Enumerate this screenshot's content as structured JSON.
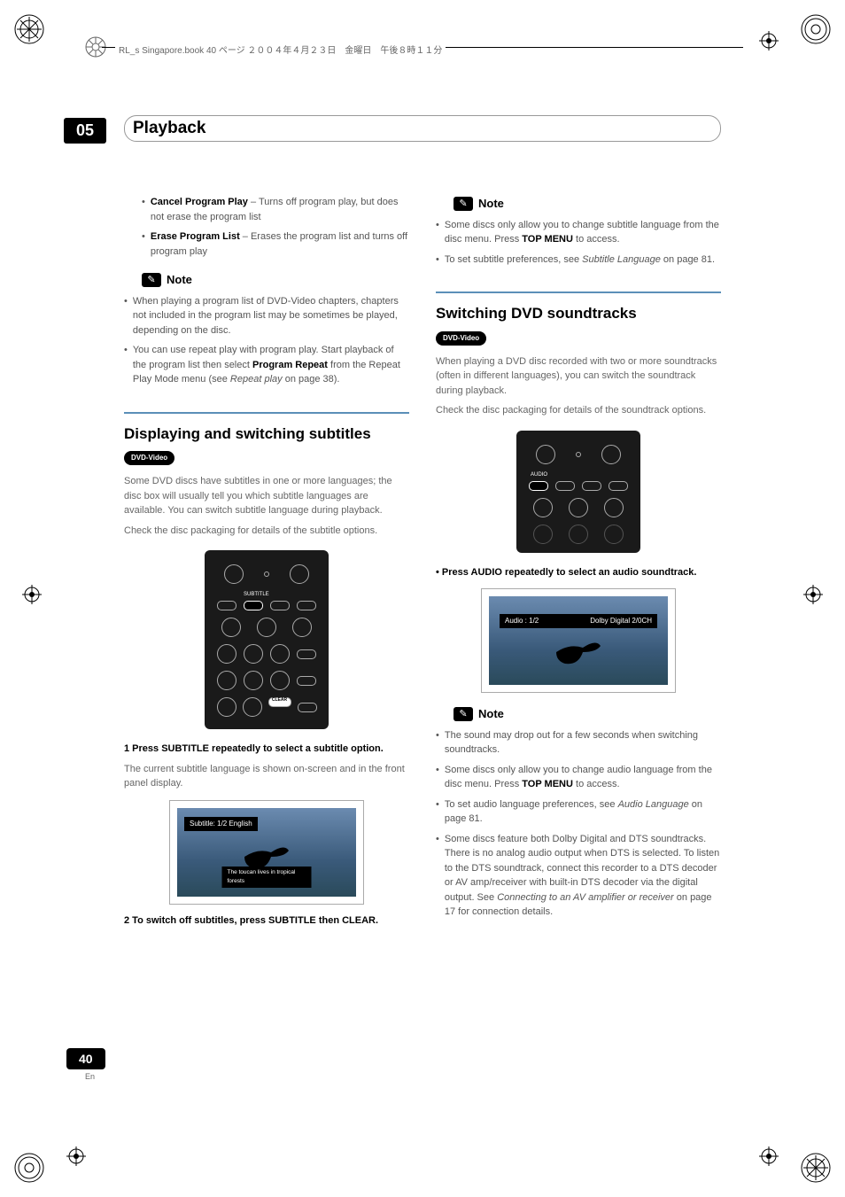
{
  "page": {
    "chapter": "05",
    "header_title": "Playback",
    "top_meta": "RL_s Singapore.book  40 ページ  ２００４年４月２３日　金曜日　午後８時１１分",
    "footer_page": "40",
    "footer_lang": "En"
  },
  "left": {
    "bullets_top": [
      {
        "bold": "Cancel Program Play",
        "rest": " – Turns off program play, but does not erase the program list"
      },
      {
        "bold": "Erase Program List",
        "rest": " – Erases the program list and turns off program play"
      }
    ],
    "note1_label": "Note",
    "note1_items": [
      "When playing a program list of DVD-Video chapters, chapters not included in the program list may be sometimes be played, depending on the disc.",
      "You can use repeat play with program play. Start playback of the program list then select <b>Program Repeat</b> from the Repeat Play Mode menu (see <i>Repeat play</i> on page 38)."
    ],
    "section_title": "Displaying and switching subtitles",
    "dvd_label": "DVD-Video",
    "para1": "Some DVD discs have subtitles in one or more languages; the disc box will usually tell you which subtitle languages are available. You can switch subtitle language during playback.",
    "para2": "Check the disc packaging for details of the subtitle options.",
    "remote_subtitle_label": "SUBTITLE",
    "remote_clear_label": "CLEAR",
    "step1": "1 Press SUBTITLE repeatedly to select a subtitle option.",
    "step1_body": "The current subtitle language is shown on-screen and in the front panel display.",
    "tv_top": "Subtitle: 1/2 English",
    "tv_bot": "The toucan lives in tropical forests",
    "step2": "2 To switch off subtitles, press SUBTITLE then CLEAR."
  },
  "right": {
    "note1_label": "Note",
    "note1_items": [
      "Some discs only allow you to change subtitle language from the disc menu. Press <b>TOP MENU</b> to access.",
      "To set subtitle preferences, see <i>Subtitle Language</i> on page 81."
    ],
    "section_title": "Switching DVD soundtracks",
    "dvd_label": "DVD-Video",
    "para1": "When playing a DVD disc recorded with two or more soundtracks (often in different languages), you can switch the soundtrack during playback.",
    "para2": "Check the disc packaging for details of the soundtrack options.",
    "remote_audio_label": "AUDIO",
    "step1": "• Press AUDIO repeatedly to select an audio soundtrack.",
    "tv_audio_left": "Audio    : 1/2",
    "tv_audio_right": "Dolby Digital 2/0CH",
    "note2_label": "Note",
    "note2_items": [
      "The sound may drop out for a few seconds when switching soundtracks.",
      "Some discs only allow you to change audio language from the disc menu. Press <b>TOP MENU</b> to access.",
      "To set audio language preferences, see <i>Audio Language</i> on page 81.",
      "Some discs feature both Dolby Digital and DTS soundtracks. There is no analog audio output when DTS is selected. To listen to the DTS soundtrack, connect this recorder to a DTS decoder or AV amp/receiver with built-in DTS decoder via the digital output. See <i>Connecting to an AV amplifier or receiver</i> on page 17 for connection details."
    ]
  },
  "colors": {
    "rule": "#5b8fb8",
    "text_body": "#666666",
    "heading": "#000000"
  }
}
